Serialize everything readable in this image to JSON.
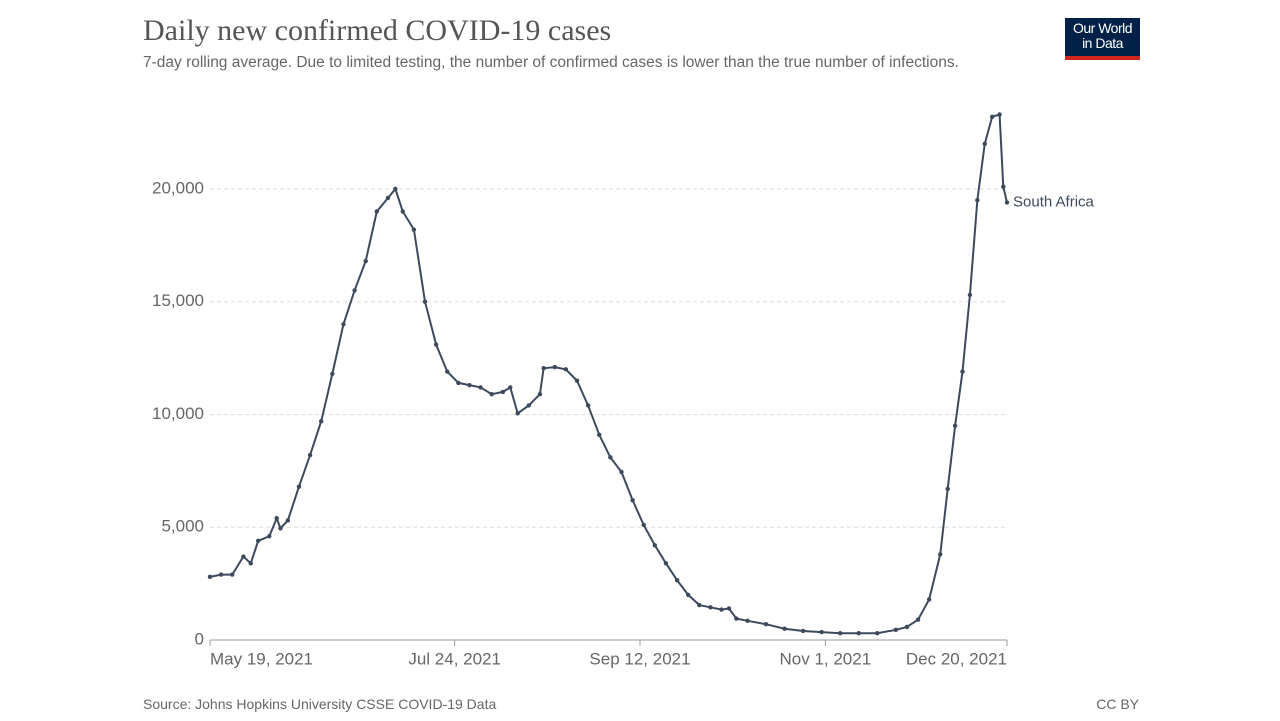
{
  "chart_data": {
    "type": "line",
    "title": "Daily new confirmed COVID-19 cases",
    "subtitle": "7-day rolling average. Due to limited testing, the number of confirmed cases is lower than the true number of infections.",
    "source": "Source: Johns Hopkins University CSSE COVID-19 Data",
    "license": "CC BY",
    "logo": [
      "Our World",
      "in Data"
    ],
    "x": [
      "2021-05-19",
      "2021-05-22",
      "2021-05-25",
      "2021-05-28",
      "2021-05-30",
      "2021-06-01",
      "2021-06-04",
      "2021-06-06",
      "2021-06-07",
      "2021-06-09",
      "2021-06-12",
      "2021-06-15",
      "2021-06-18",
      "2021-06-21",
      "2021-06-24",
      "2021-06-27",
      "2021-06-30",
      "2021-07-03",
      "2021-07-06",
      "2021-07-08",
      "2021-07-10",
      "2021-07-13",
      "2021-07-16",
      "2021-07-19",
      "2021-07-22",
      "2021-07-25",
      "2021-07-28",
      "2021-07-31",
      "2021-08-03",
      "2021-08-06",
      "2021-08-08",
      "2021-08-10",
      "2021-08-13",
      "2021-08-16",
      "2021-08-17",
      "2021-08-20",
      "2021-08-23",
      "2021-08-26",
      "2021-08-29",
      "2021-09-01",
      "2021-09-04",
      "2021-09-07",
      "2021-09-10",
      "2021-09-13",
      "2021-09-16",
      "2021-09-19",
      "2021-09-22",
      "2021-09-25",
      "2021-09-28",
      "2021-10-01",
      "2021-10-04",
      "2021-10-06",
      "2021-10-08",
      "2021-10-11",
      "2021-10-16",
      "2021-10-21",
      "2021-10-26",
      "2021-10-31",
      "2021-11-05",
      "2021-11-10",
      "2021-11-15",
      "2021-11-20",
      "2021-11-23",
      "2021-11-26",
      "2021-11-29",
      "2021-12-02",
      "2021-12-04",
      "2021-12-06",
      "2021-12-08",
      "2021-12-10",
      "2021-12-12",
      "2021-12-14",
      "2021-12-16",
      "2021-12-18",
      "2021-12-19",
      "2021-12-20"
    ],
    "series": [
      {
        "name": "South Africa",
        "color": "#3d4a5c",
        "values": [
          2800,
          2900,
          2900,
          3700,
          3400,
          4400,
          4600,
          5400,
          4950,
          5300,
          6800,
          8200,
          9700,
          11800,
          14000,
          15500,
          16800,
          19000,
          19600,
          20000,
          19000,
          18200,
          15000,
          13100,
          11900,
          11400,
          11300,
          11200,
          10900,
          11000,
          11200,
          10050,
          10400,
          10900,
          12050,
          12100,
          12000,
          11500,
          10400,
          9100,
          8100,
          7450,
          6200,
          5100,
          4200,
          3400,
          2650,
          2000,
          1550,
          1450,
          1350,
          1400,
          950,
          850,
          700,
          500,
          400,
          350,
          300,
          300,
          300,
          450,
          580,
          900,
          1800,
          3800,
          6700,
          9500,
          11900,
          15300,
          19500,
          22000,
          23200,
          23300,
          20100,
          19400
        ]
      }
    ],
    "xlim": [
      "2021-05-19",
      "2021-12-20"
    ],
    "xticks": [
      {
        "value": "2021-05-19",
        "label": "May 19, 2021"
      },
      {
        "value": "2021-07-24",
        "label": "Jul 24, 2021"
      },
      {
        "value": "2021-09-12",
        "label": "Sep 12, 2021"
      },
      {
        "value": "2021-11-01",
        "label": "Nov 1, 2021"
      },
      {
        "value": "2021-12-20",
        "label": "Dec 20, 2021"
      }
    ],
    "ylim": [
      0,
      23500
    ],
    "yticks": [
      0,
      {
        "value": 5000,
        "label": "5,000"
      },
      {
        "value": 10000,
        "label": "10,000"
      },
      {
        "value": 15000,
        "label": "15,000"
      },
      {
        "value": 20000,
        "label": "20,000"
      }
    ],
    "grid": true
  }
}
